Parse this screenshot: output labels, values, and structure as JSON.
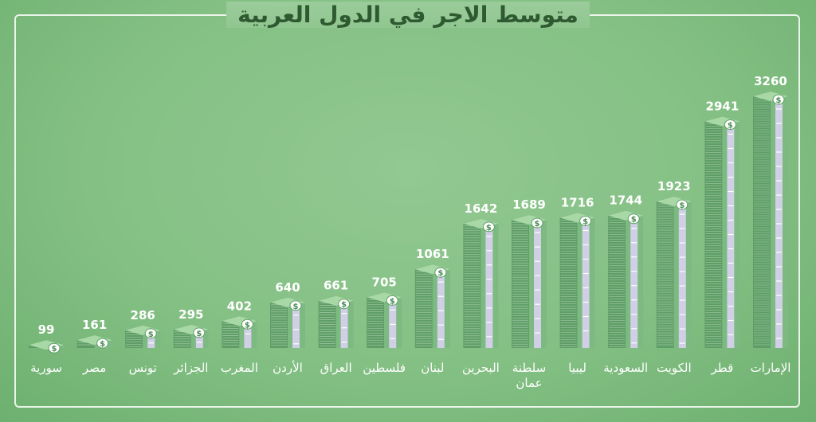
{
  "chart_data": {
    "type": "bar",
    "title": "متوسط الاجر في الدول العربية",
    "xlabel": "",
    "ylabel": "",
    "ylim": [
      0,
      3260
    ],
    "grid": false,
    "categories": [
      [
        "سورية"
      ],
      [
        "مصر"
      ],
      [
        "تونس"
      ],
      [
        "الجزائر"
      ],
      [
        "المغرب"
      ],
      [
        "الأردن"
      ],
      [
        "العراق"
      ],
      [
        "فلسطين"
      ],
      [
        "لبنان"
      ],
      [
        "البحرين"
      ],
      [
        "سلطنة",
        "عمان"
      ],
      [
        "ليبيا"
      ],
      [
        "السعودية"
      ],
      [
        "الكويت"
      ],
      [
        "قطر"
      ],
      [
        "الإمارات"
      ]
    ],
    "value_labels": [
      "99",
      "161",
      "286",
      "295",
      "402",
      "640",
      "661",
      "705",
      "1061",
      "1642",
      "1689",
      "1716",
      "1744",
      "1923",
      "2941",
      "3260"
    ],
    "values": [
      99,
      161,
      286,
      295,
      402,
      640,
      661,
      705,
      1061,
      1642,
      1689,
      1716,
      1744,
      1923,
      2941,
      3260
    ],
    "colors": {
      "stack_side": "#5e9e66",
      "stack_front": "#7dba82",
      "stack_top": "#a8d8a6",
      "band": "#d9d2f0",
      "line": "#f4fbf4"
    }
  }
}
